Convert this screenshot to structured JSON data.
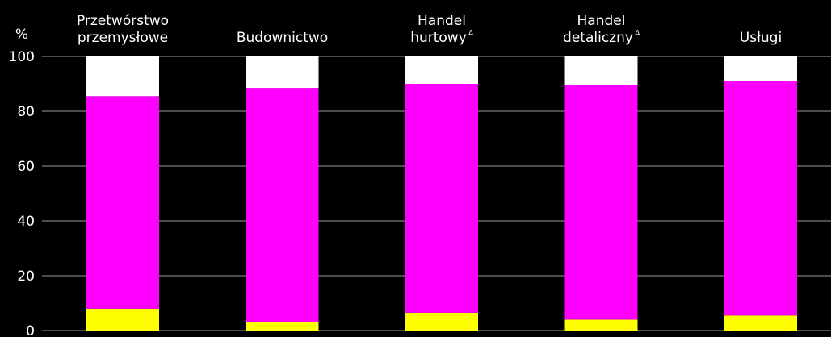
{
  "chart_data": {
    "type": "bar",
    "stacked": true,
    "unit": "%",
    "ylim": [
      0,
      100
    ],
    "yticks": [
      0,
      20,
      40,
      60,
      80,
      100
    ],
    "grid": true,
    "categories": [
      {
        "lines": [
          "Przetwórstwo",
          "przemysłowe"
        ],
        "mark": ""
      },
      {
        "lines": [
          "Budownictwo"
        ],
        "mark": ""
      },
      {
        "lines": [
          "Handel",
          "hurtowy"
        ],
        "mark": "Δ"
      },
      {
        "lines": [
          "Handel",
          "detaliczny"
        ],
        "mark": "Δ"
      },
      {
        "lines": [
          "Usługi"
        ],
        "mark": ""
      }
    ],
    "series": [
      {
        "color": "#ffff00",
        "values": [
          8,
          3,
          6.5,
          4,
          5.5
        ]
      },
      {
        "color": "#ff00ff",
        "values": [
          77.5,
          85.5,
          83.5,
          85.5,
          85.5
        ]
      },
      {
        "color": "#ffffff",
        "values": [
          14.5,
          11.5,
          10,
          10.5,
          9
        ]
      }
    ]
  }
}
